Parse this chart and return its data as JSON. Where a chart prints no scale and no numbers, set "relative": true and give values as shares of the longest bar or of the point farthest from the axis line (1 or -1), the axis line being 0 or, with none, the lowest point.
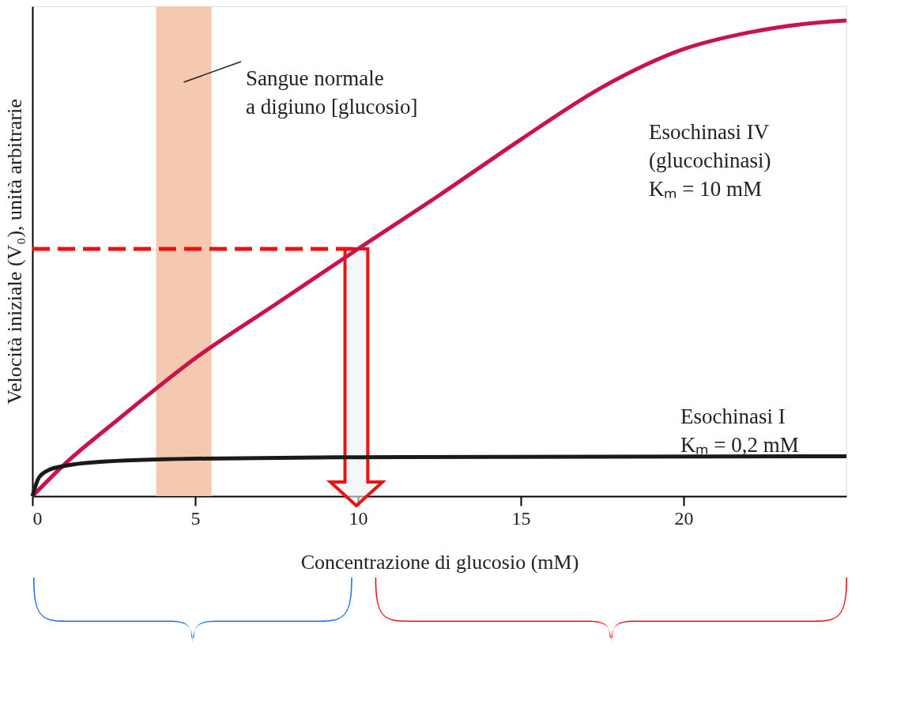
{
  "chart_data": {
    "type": "line",
    "relative": true,
    "xlabel": "Concentrazione di glucosio (mM)",
    "ylabel": "Velocità iniziale (V₀), unità arbitrarie",
    "xlim": [
      0,
      25
    ],
    "xticks": [
      0,
      5,
      10,
      15,
      20
    ],
    "series": [
      {
        "color": "#c8144a",
        "x": [
          0,
          1,
          2.5,
          5,
          7.5,
          10,
          12.5,
          15,
          17.5,
          20,
          22,
          24.5,
          25
        ],
        "values": [
          0,
          0.068,
          0.154,
          0.29,
          0.405,
          0.52,
          0.633,
          0.75,
          0.86,
          0.94,
          0.975,
          0.998,
          1.0
        ]
      },
      {
        "color": "#1a1a1a",
        "x": [
          0,
          0.2,
          0.5,
          1,
          2,
          5,
          10,
          25
        ],
        "values": [
          0,
          0.039,
          0.055,
          0.064,
          0.072,
          0.079,
          0.082,
          0.084
        ]
      },
      {
        "color": "#ee1111",
        "line_style": "dashed",
        "x": [
          0,
          10
        ],
        "values": [
          0.52,
          0.52
        ]
      }
    ],
    "bands": [
      {
        "axis": "x",
        "from": 3.8,
        "to": 5.5,
        "color": "#f4c3a6"
      }
    ],
    "annotations": [
      "Sangue normale\na digiuno [glucosio]",
      "Esochinasi IV\n(glucochinasi)\nKₘ = 10 mM",
      "Esochinasi I\nKₘ = 0,2 mM"
    ],
    "grid": false,
    "line_style": "solid",
    "marker": "none"
  }
}
